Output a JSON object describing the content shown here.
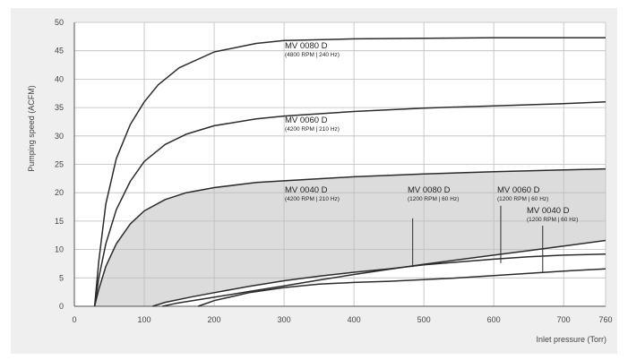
{
  "chart_data": {
    "type": "line",
    "title": "",
    "xlabel": "Inlet pressure (Torr)",
    "ylabel": "Pumping speed (ACFM)",
    "xlim": [
      0,
      760
    ],
    "ylim": [
      0,
      50
    ],
    "xticks": [
      0,
      100,
      200,
      300,
      400,
      500,
      600,
      700,
      760
    ],
    "yticks": [
      0,
      5,
      10,
      15,
      20,
      25,
      30,
      35,
      40,
      45,
      50
    ],
    "grid": true,
    "series": [
      {
        "key": "s80_240",
        "points": [
          [
            29,
            0
          ],
          [
            35,
            8
          ],
          [
            45,
            18
          ],
          [
            60,
            26
          ],
          [
            80,
            32
          ],
          [
            100,
            36
          ],
          [
            120,
            39
          ],
          [
            150,
            42
          ],
          [
            200,
            44.8
          ],
          [
            260,
            46.3
          ],
          [
            300,
            46.8
          ],
          [
            400,
            47.1
          ],
          [
            500,
            47.2
          ],
          [
            600,
            47.3
          ],
          [
            700,
            47.3
          ],
          [
            760,
            47.3
          ]
        ]
      },
      {
        "key": "s60_210",
        "points": [
          [
            29,
            0
          ],
          [
            35,
            5
          ],
          [
            45,
            11
          ],
          [
            60,
            17
          ],
          [
            80,
            22
          ],
          [
            100,
            25.5
          ],
          [
            130,
            28.5
          ],
          [
            160,
            30.3
          ],
          [
            200,
            31.8
          ],
          [
            260,
            33
          ],
          [
            300,
            33.5
          ],
          [
            400,
            34.3
          ],
          [
            500,
            34.9
          ],
          [
            600,
            35.3
          ],
          [
            700,
            35.7
          ],
          [
            760,
            36
          ]
        ]
      },
      {
        "key": "s40_210",
        "points": [
          [
            29,
            0
          ],
          [
            35,
            3
          ],
          [
            45,
            7
          ],
          [
            60,
            11
          ],
          [
            80,
            14.5
          ],
          [
            100,
            16.8
          ],
          [
            130,
            18.8
          ],
          [
            160,
            20
          ],
          [
            200,
            20.9
          ],
          [
            260,
            21.8
          ],
          [
            300,
            22.1
          ],
          [
            400,
            22.8
          ],
          [
            500,
            23.3
          ],
          [
            600,
            23.7
          ],
          [
            700,
            24
          ],
          [
            760,
            24.2
          ]
        ]
      },
      {
        "key": "s80_60",
        "points": [
          [
            112,
            0
          ],
          [
            130,
            0.7
          ],
          [
            170,
            1.7
          ],
          [
            200,
            2.4
          ],
          [
            250,
            3.5
          ],
          [
            300,
            4.5
          ],
          [
            350,
            5.3
          ],
          [
            400,
            6
          ],
          [
            450,
            6.6
          ],
          [
            500,
            7.3
          ],
          [
            550,
            7.8
          ],
          [
            600,
            8.3
          ],
          [
            650,
            8.7
          ],
          [
            700,
            9
          ],
          [
            760,
            9.2
          ]
        ]
      },
      {
        "key": "s60_60",
        "points": [
          [
            126,
            0
          ],
          [
            145,
            0.5
          ],
          [
            200,
            1.6
          ],
          [
            250,
            2.6
          ],
          [
            300,
            3.6
          ],
          [
            350,
            4.6
          ],
          [
            400,
            5.6
          ],
          [
            450,
            6.5
          ],
          [
            500,
            7.4
          ],
          [
            550,
            8.2
          ],
          [
            600,
            9
          ],
          [
            650,
            9.8
          ],
          [
            700,
            10.6
          ],
          [
            760,
            11.6
          ]
        ]
      },
      {
        "key": "s40_60",
        "points": [
          [
            177,
            0
          ],
          [
            200,
            1
          ],
          [
            250,
            2.4
          ],
          [
            300,
            3.3
          ],
          [
            350,
            3.9
          ],
          [
            400,
            4.2
          ],
          [
            450,
            4.4
          ],
          [
            500,
            4.7
          ],
          [
            550,
            5
          ],
          [
            600,
            5.4
          ],
          [
            650,
            5.8
          ],
          [
            700,
            6.2
          ],
          [
            760,
            6.6
          ]
        ]
      }
    ],
    "shaded_region": "between MV 0040 D (4200 RPM | 210 Hz) curve and the 60 Hz curves",
    "annotations": [
      {
        "key": "a80_240",
        "name": "MV 0080 D",
        "detail": "(4800 RPM | 240 Hz)"
      },
      {
        "key": "a60_210",
        "name": "MV 0060 D",
        "detail": "(4200 RPM | 210 Hz)"
      },
      {
        "key": "a40_210",
        "name": "MV 0040 D",
        "detail": "(4200 RPM | 210 Hz)"
      },
      {
        "key": "a80_60",
        "name": "MV 0080 D",
        "detail": "(1200 RPM | 60 Hz)"
      },
      {
        "key": "a60_60",
        "name": "MV 0060 D",
        "detail": "(1200 RPM | 60 Hz)"
      },
      {
        "key": "a40_60",
        "name": "MV 0040 D",
        "detail": "(1200 RPM | 60 Hz)"
      }
    ],
    "pointers": [
      {
        "key": "a80_60",
        "x": 484,
        "y_from": 15.5,
        "y_to": 6.9
      },
      {
        "key": "a60_60",
        "x": 610,
        "y_from": 17.7,
        "y_to": 7.6
      },
      {
        "key": "a40_60",
        "x": 670,
        "y_from": 14.2,
        "y_to": 5.9
      }
    ]
  }
}
